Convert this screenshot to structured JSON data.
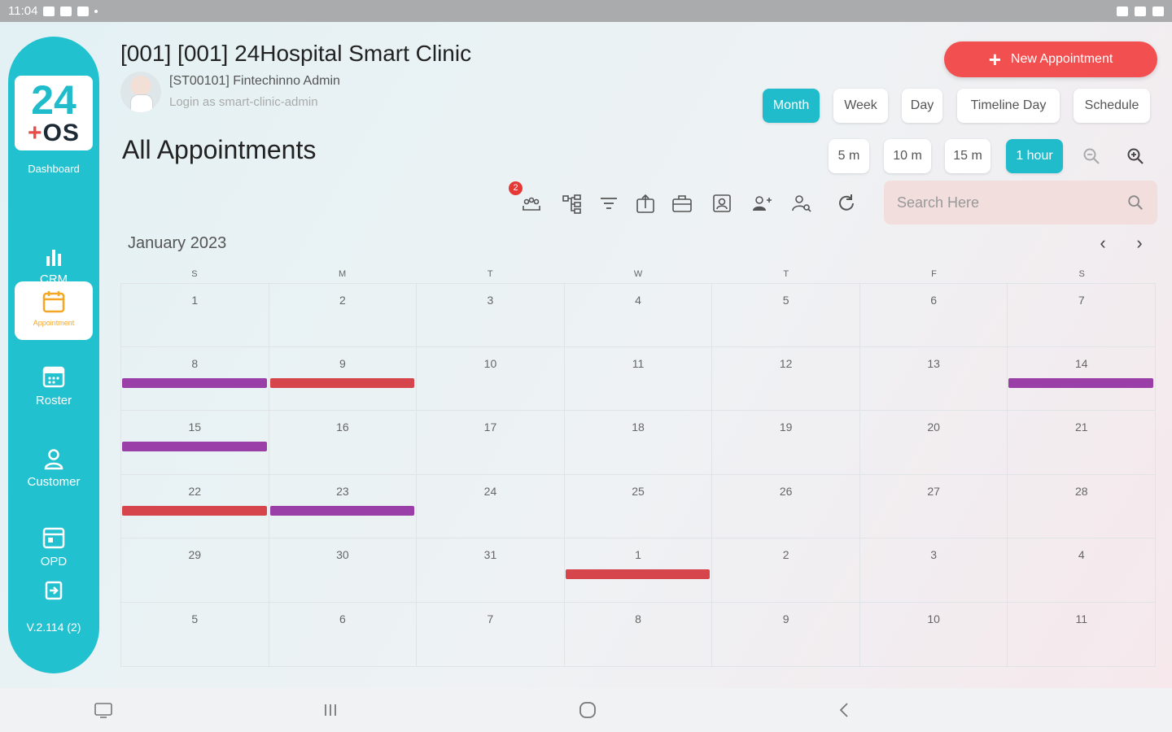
{
  "status_bar": {
    "time": "11:04"
  },
  "sidebar": {
    "logo_top": "24",
    "logo_bottom_plus": "+",
    "logo_bottom_rest": "OS",
    "dashboard_label": "Dashboard",
    "items": [
      {
        "label": "CRM",
        "icon": "bar-chart-icon"
      },
      {
        "label": "Appointment",
        "icon": "calendar-icon",
        "active": true
      },
      {
        "label": "Roster",
        "icon": "roster-calendar-icon"
      },
      {
        "label": "Customer",
        "icon": "person-icon"
      },
      {
        "label": "OPD",
        "icon": "opd-calendar-icon"
      }
    ],
    "version": "V.2.114 (2)"
  },
  "header": {
    "clinic_title": "[001] [001] 24Hospital Smart Clinic",
    "user_name": "[ST00101] Fintechinno Admin",
    "user_login": "Login as smart-clinic-admin",
    "page_title": "All Appointments",
    "new_button_label": "New Appointment"
  },
  "view_tabs": [
    {
      "label": "Month",
      "active": true
    },
    {
      "label": "Week",
      "active": false
    },
    {
      "label": "Day",
      "active": false
    },
    {
      "label": "Timeline Day",
      "active": false
    },
    {
      "label": "Schedule",
      "active": false
    }
  ],
  "interval_tabs": [
    {
      "label": "5 m",
      "active": false
    },
    {
      "label": "10 m",
      "active": false
    },
    {
      "label": "15 m",
      "active": false
    },
    {
      "label": "1 hour",
      "active": true
    }
  ],
  "toolbar": {
    "notification_count": "2"
  },
  "search": {
    "placeholder": "Search Here"
  },
  "calendar": {
    "month_label": "January 2023",
    "weekdays": [
      "S",
      "M",
      "T",
      "W",
      "T",
      "F",
      "S"
    ],
    "weeks": [
      [
        {
          "day": "1"
        },
        {
          "day": "2"
        },
        {
          "day": "3"
        },
        {
          "day": "4"
        },
        {
          "day": "5"
        },
        {
          "day": "6"
        },
        {
          "day": "7"
        }
      ],
      [
        {
          "day": "8",
          "event": "purple"
        },
        {
          "day": "9",
          "event": "red"
        },
        {
          "day": "10"
        },
        {
          "day": "11"
        },
        {
          "day": "12"
        },
        {
          "day": "13"
        },
        {
          "day": "14",
          "event": "purple"
        }
      ],
      [
        {
          "day": "15",
          "event": "purple"
        },
        {
          "day": "16"
        },
        {
          "day": "17"
        },
        {
          "day": "18"
        },
        {
          "day": "19"
        },
        {
          "day": "20"
        },
        {
          "day": "21"
        }
      ],
      [
        {
          "day": "22",
          "event": "red"
        },
        {
          "day": "23",
          "event": "purple"
        },
        {
          "day": "24"
        },
        {
          "day": "25"
        },
        {
          "day": "26"
        },
        {
          "day": "27"
        },
        {
          "day": "28"
        }
      ],
      [
        {
          "day": "29"
        },
        {
          "day": "30"
        },
        {
          "day": "31"
        },
        {
          "day": "1",
          "event": "red"
        },
        {
          "day": "2"
        },
        {
          "day": "3"
        },
        {
          "day": "4"
        }
      ],
      [
        {
          "day": "5"
        },
        {
          "day": "6"
        },
        {
          "day": "7"
        },
        {
          "day": "8"
        },
        {
          "day": "9"
        },
        {
          "day": "10"
        },
        {
          "day": "11"
        }
      ]
    ]
  },
  "colors": {
    "accent": "#20bccb",
    "new_button": "#f25050",
    "event_purple": "#9b3fa8",
    "event_red": "#d6454c"
  }
}
